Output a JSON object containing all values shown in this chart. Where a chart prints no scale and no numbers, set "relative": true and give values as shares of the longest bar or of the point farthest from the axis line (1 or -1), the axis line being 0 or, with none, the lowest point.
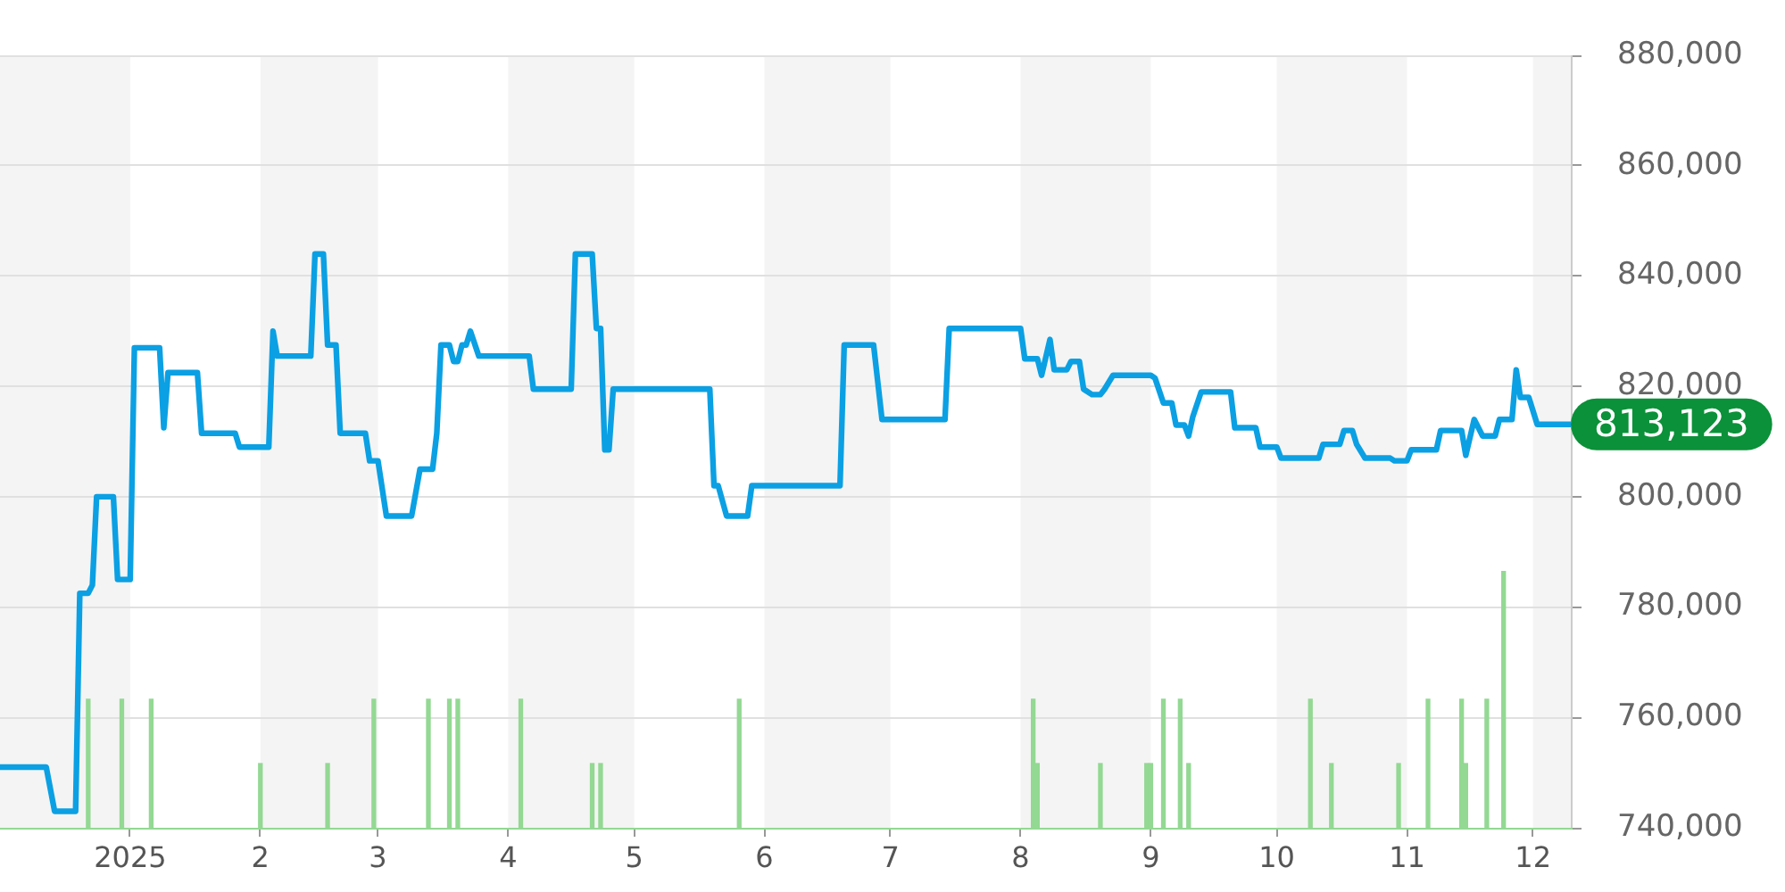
{
  "chart_data": [
    {
      "type": "line",
      "color": "#0ba0e3",
      "x": [
        "2024-12-01",
        "2024-12-12",
        "2024-12-14",
        "2024-12-19",
        "2024-12-20",
        "2024-12-22",
        "2024-12-23",
        "2024-12-24",
        "2024-12-28",
        "2024-12-29",
        "2025-01-01",
        "2025-01-02",
        "2025-01-08",
        "2025-01-09",
        "2025-01-10",
        "2025-01-17",
        "2025-01-18",
        "2025-01-26",
        "2025-01-27",
        "2025-02-03",
        "2025-02-04",
        "2025-02-05",
        "2025-02-13",
        "2025-02-14",
        "2025-02-16",
        "2025-02-17",
        "2025-02-19",
        "2025-02-20",
        "2025-02-26",
        "2025-02-27",
        "2025-03-01",
        "2025-03-03",
        "2025-03-09",
        "2025-03-11",
        "2025-03-14",
        "2025-03-15",
        "2025-03-16",
        "2025-03-18",
        "2025-03-19",
        "2025-03-20",
        "2025-03-21",
        "2025-03-22",
        "2025-03-23",
        "2025-03-25",
        "2025-04-06",
        "2025-04-07",
        "2025-04-16",
        "2025-04-17",
        "2025-04-21",
        "2025-04-22",
        "2025-04-23",
        "2025-04-24",
        "2025-04-25",
        "2025-04-26",
        "2025-05-19",
        "2025-05-20",
        "2025-05-21",
        "2025-05-23",
        "2025-05-28",
        "2025-05-29",
        "2025-06-19",
        "2025-06-20",
        "2025-06-27",
        "2025-06-29",
        "2025-07-14",
        "2025-07-15",
        "2025-08-01",
        "2025-08-02",
        "2025-08-05",
        "2025-08-06",
        "2025-08-08",
        "2025-08-09",
        "2025-08-12",
        "2025-08-13",
        "2025-08-15",
        "2025-08-16",
        "2025-08-18",
        "2025-08-20",
        "2025-08-21",
        "2025-08-23",
        "2025-09-01",
        "2025-09-02",
        "2025-09-04",
        "2025-09-06",
        "2025-09-07",
        "2025-09-09",
        "2025-09-10",
        "2025-09-11",
        "2025-09-13",
        "2025-09-20",
        "2025-09-21",
        "2025-09-26",
        "2025-09-27",
        "2025-10-01",
        "2025-10-02",
        "2025-10-11",
        "2025-10-12",
        "2025-10-16",
        "2025-10-17",
        "2025-10-19",
        "2025-10-20",
        "2025-10-22",
        "2025-10-28",
        "2025-10-29",
        "2025-11-01",
        "2025-11-02",
        "2025-11-08",
        "2025-11-09",
        "2025-11-14",
        "2025-11-15",
        "2025-11-17",
        "2025-11-19",
        "2025-11-22",
        "2025-11-23",
        "2025-11-26",
        "2025-11-27",
        "2025-11-28",
        "2025-11-30",
        "2025-12-02",
        "2025-12-10"
      ],
      "values": [
        751000,
        751000,
        743000,
        743000,
        782500,
        782500,
        784000,
        800000,
        800000,
        785000,
        785000,
        827000,
        827000,
        812500,
        822500,
        822500,
        811500,
        811500,
        809000,
        809000,
        830000,
        825500,
        825500,
        844000,
        844000,
        827500,
        827500,
        811500,
        811500,
        806500,
        806500,
        796500,
        796500,
        805000,
        805000,
        811500,
        827500,
        827500,
        824500,
        824500,
        827500,
        827500,
        830000,
        825500,
        825500,
        819500,
        819500,
        844000,
        844000,
        830500,
        830500,
        808500,
        808500,
        819500,
        819500,
        802000,
        802000,
        796500,
        796500,
        802000,
        802000,
        827500,
        827500,
        814000,
        814000,
        830500,
        830500,
        825000,
        825000,
        822000,
        828500,
        823000,
        823000,
        824500,
        824500,
        819500,
        818500,
        818500,
        819500,
        822000,
        822000,
        821500,
        817000,
        817000,
        813000,
        813000,
        811000,
        814500,
        819000,
        819000,
        812500,
        812500,
        809000,
        809000,
        807000,
        807000,
        809500,
        809500,
        812000,
        812000,
        809500,
        807000,
        807000,
        806500,
        806500,
        808500,
        808500,
        812000,
        812000,
        807500,
        814000,
        811000,
        811000,
        814000,
        814000,
        823000,
        818000,
        818000,
        813123,
        813123
      ],
      "xlim": [
        "2024-12-01",
        "2025-12-10"
      ],
      "xticks": [
        {
          "value": "2025-01-01",
          "label": "2025"
        },
        {
          "value": "2025-02-01",
          "label": "2"
        },
        {
          "value": "2025-03-01",
          "label": "3"
        },
        {
          "value": "2025-04-01",
          "label": "4"
        },
        {
          "value": "2025-05-01",
          "label": "5"
        },
        {
          "value": "2025-06-01",
          "label": "6"
        },
        {
          "value": "2025-07-01",
          "label": "7"
        },
        {
          "value": "2025-08-01",
          "label": "8"
        },
        {
          "value": "2025-09-01",
          "label": "9"
        },
        {
          "value": "2025-10-01",
          "label": "10"
        },
        {
          "value": "2025-11-01",
          "label": "11"
        },
        {
          "value": "2025-12-01",
          "label": "12"
        }
      ],
      "ylim": [
        740000,
        880000
      ],
      "yticks": [
        {
          "value": 740000,
          "label": "740,000"
        },
        {
          "value": 760000,
          "label": "760,000"
        },
        {
          "value": 780000,
          "label": "780,000"
        },
        {
          "value": 800000,
          "label": "800,000"
        },
        {
          "value": 820000,
          "label": "820,000"
        },
        {
          "value": 840000,
          "label": "840,000"
        },
        {
          "value": 860000,
          "label": "860,000"
        },
        {
          "value": 880000,
          "label": "880,000"
        }
      ],
      "grid": "y",
      "bands": [
        {
          "axis": "x",
          "from": "2024-12-01",
          "to": "2025-01-01",
          "color": "#f4f4f4"
        },
        {
          "axis": "x",
          "from": "2025-02-01",
          "to": "2025-03-01",
          "color": "#f4f4f4"
        },
        {
          "axis": "x",
          "from": "2025-04-01",
          "to": "2025-05-01",
          "color": "#f4f4f4"
        },
        {
          "axis": "x",
          "from": "2025-06-01",
          "to": "2025-07-01",
          "color": "#f4f4f4"
        },
        {
          "axis": "x",
          "from": "2025-08-01",
          "to": "2025-09-01",
          "color": "#f4f4f4"
        },
        {
          "axis": "x",
          "from": "2025-10-01",
          "to": "2025-11-01",
          "color": "#f4f4f4"
        },
        {
          "axis": "x",
          "from": "2025-12-01",
          "to": "2025-12-10",
          "color": "#f4f4f4"
        }
      ],
      "annotations": [
        {
          "text": "813,123",
          "x": "2025-12-10",
          "y": 813123
        }
      ]
    },
    {
      "type": "bar",
      "relative": true,
      "color": "#93d893",
      "tick_labels": false,
      "xlim": [
        "2024-12-01",
        "2025-12-10"
      ],
      "x": [
        "2024-12-22",
        "2024-12-30",
        "2025-01-06",
        "2025-02-01",
        "2025-02-17",
        "2025-02-28",
        "2025-03-13",
        "2025-03-18",
        "2025-03-20",
        "2025-04-04",
        "2025-04-21",
        "2025-04-23",
        "2025-05-26",
        "2025-08-04",
        "2025-08-05",
        "2025-08-20",
        "2025-08-31",
        "2025-09-01",
        "2025-09-04",
        "2025-09-08",
        "2025-09-10",
        "2025-10-09",
        "2025-10-14",
        "2025-10-30",
        "2025-11-06",
        "2025-11-14",
        "2025-11-15",
        "2025-11-20",
        "2025-11-24"
      ],
      "values": [
        0.5,
        0.5,
        0.5,
        0.25,
        0.25,
        0.5,
        0.5,
        0.5,
        0.5,
        0.5,
        0.25,
        0.25,
        0.5,
        0.5,
        0.25,
        0.25,
        0.25,
        0.25,
        0.5,
        0.5,
        0.25,
        0.5,
        0.25,
        0.25,
        0.5,
        0.5,
        0.25,
        0.5,
        1
      ]
    }
  ]
}
